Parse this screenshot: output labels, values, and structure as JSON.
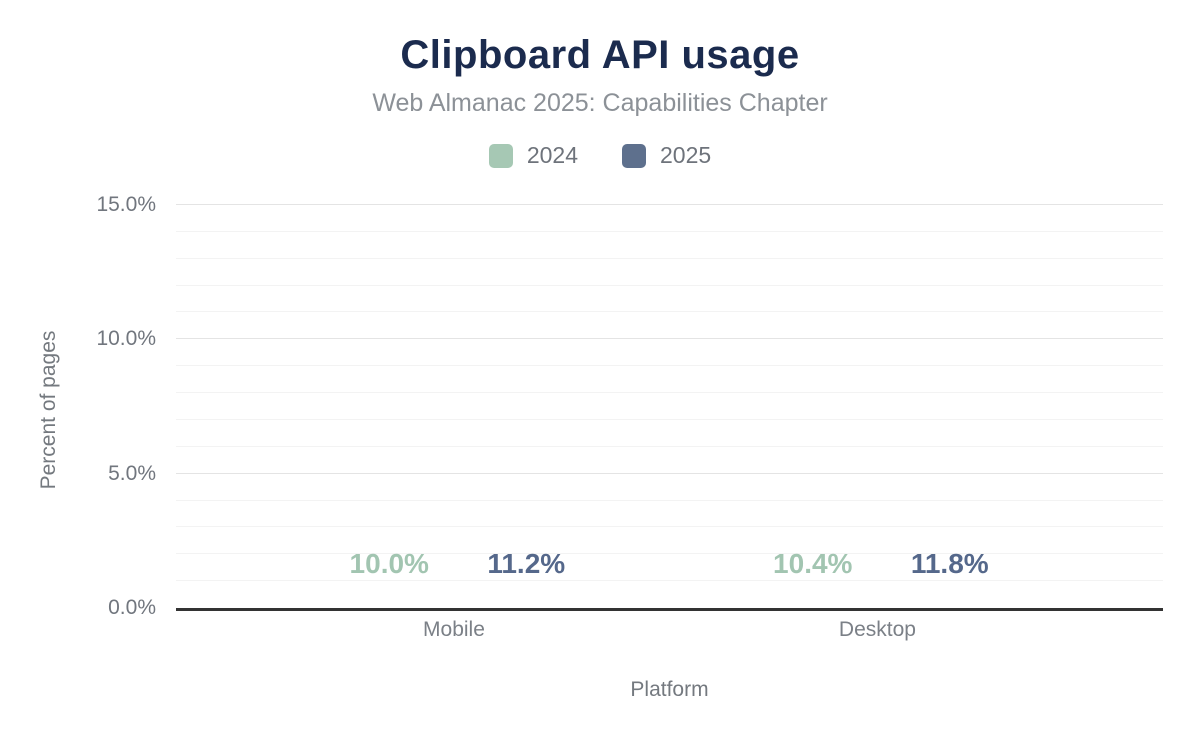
{
  "chart_data": {
    "type": "bar",
    "title": "Clipboard API usage",
    "subtitle": "Web Almanac 2025: Capabilities Chapter",
    "xlabel": "Platform",
    "ylabel": "Percent of pages",
    "categories": [
      "Mobile",
      "Desktop"
    ],
    "series": [
      {
        "name": "2024",
        "color": "#a6c8b4",
        "label_color": "#a2c5b1",
        "values": [
          10.0,
          10.4
        ],
        "value_labels": [
          "10.0%",
          "10.4%"
        ]
      },
      {
        "name": "2025",
        "color": "#5e708d",
        "label_color": "#55688b",
        "values": [
          11.2,
          11.8
        ],
        "value_labels": [
          "11.2%",
          "11.8%"
        ]
      }
    ],
    "ylim": [
      0,
      15
    ],
    "yticks": {
      "values": [
        0,
        5,
        10,
        15
      ],
      "labels": [
        "0.0%",
        "5.0%",
        "10.0%",
        "15.0%"
      ]
    },
    "minor_grid_step": 1,
    "grid": true,
    "legend_position": "top",
    "colors": {
      "title": "#1b2b4e",
      "subtitle": "#8c9197",
      "axis_text": "#71767e",
      "axis_line": "#333333",
      "major_grid": "#e4e4e4",
      "minor_grid": "#f3f3f3",
      "background": "#ffffff"
    }
  }
}
